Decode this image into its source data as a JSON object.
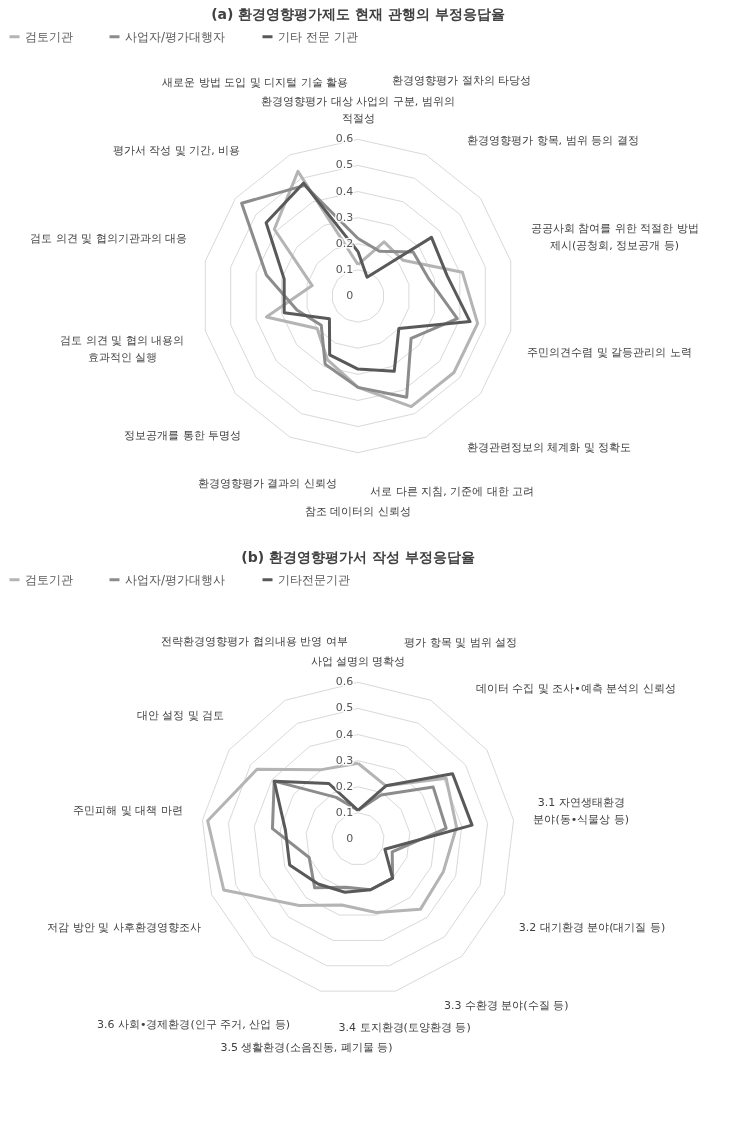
{
  "chart_data": [
    {
      "type": "radar",
      "title": "(a) 환경영향평가제도 현재 관행의 부정응답율",
      "legend": "top",
      "grid": true,
      "ylim": [
        0,
        0.6
      ],
      "yticks": [
        0,
        0.1,
        0.2,
        0.3,
        0.4,
        0.5,
        0.6
      ],
      "categories": [
        "환경영향평가 대상 사업의 구분, 범위의 적절성",
        "환경영향평가 절차의 타당성",
        "환경영향평가 항목, 범위 등의 결정",
        "공공사회 참여를 위한 적절한 방법 제시(공청회, 정보공개 등)",
        "주민의견수렴 및 갈등관리의 노력",
        "환경관련정보의 체계화 및 정확도",
        "서로 다른 지침, 기준에 대한 고려",
        "참조 데이터의 신뢰성",
        "환경영향평가 결과의 신뢰성",
        "정보공개를 통한 투명성",
        "검토 의견 및 협의 내용의 효과적인 실행",
        "검토 의견 및 협의기관과의 대응",
        "평가서 작성 및 기간, 비용",
        "새로운 방법 도입 및 디지털 기술 활용"
      ],
      "series": [
        {
          "name": "검토기관",
          "color": "#b4b4b4",
          "values": [
            0.12,
            0.23,
            0.22,
            0.41,
            0.47,
            0.47,
            0.47,
            0.35,
            0.27,
            0.2,
            0.36,
            0.18,
            0.41,
            0.53
          ]
        },
        {
          "name": "사업자/평가대행자",
          "color": "#8c8c8c",
          "values": [
            0.22,
            0.19,
            0.27,
            0.28,
            0.39,
            0.26,
            0.43,
            0.35,
            0.29,
            0.18,
            0.24,
            0.36,
            0.57,
            0.47
          ]
        },
        {
          "name": "기타 전문 기관",
          "color": "#595959",
          "values": [
            0.17,
            0.08,
            0.36,
            0.35,
            0.44,
            0.2,
            0.32,
            0.28,
            0.25,
            0.14,
            0.29,
            0.29,
            0.45,
            0.48
          ]
        }
      ]
    },
    {
      "type": "radar",
      "title": "(b) 환경영향평가서 작성 부정응답율",
      "legend": "top",
      "grid": true,
      "ylim": [
        0,
        0.6
      ],
      "yticks": [
        0,
        0.1,
        0.2,
        0.3,
        0.4,
        0.5,
        0.6
      ],
      "categories": [
        "사업 설명의 명확성",
        "평가 항목 및 범위 설정",
        "데이터 수집 및 조사•예측 분석의 신뢰성",
        "3.1 자연생태환경 분야(동•식물상 등)",
        "3.2 대기환경 분야(대기질 등)",
        "3.3 수환경 분야(수질 등)",
        "3.4 토지환경(토양환경 등)",
        "3.5 생활환경(소음진동, 폐기물 등)",
        "3.6 사회•경제환경(인구 주거, 산업 등)",
        "저감 방안 및 사후환경영향조사",
        "주민피해 및 대책 마련",
        "대안 설정 및 검토",
        "전략환경영향평가 협의내용 반영 여부"
      ],
      "series": [
        {
          "name": "검토기관",
          "color": "#b4b4b4",
          "values": [
            0.29,
            0.23,
            0.41,
            0.38,
            0.35,
            0.36,
            0.29,
            0.26,
            0.34,
            0.55,
            0.58,
            0.47,
            0.3
          ]
        },
        {
          "name": "사업자/평가대행사",
          "color": "#8c8c8c",
          "values": [
            0.11,
            0.19,
            0.35,
            0.34,
            0.14,
            0.2,
            0.2,
            0.19,
            0.25,
            0.2,
            0.33,
            0.39,
            0.18
          ]
        },
        {
          "name": "기타전문기관",
          "color": "#595959",
          "values": [
            0.11,
            0.23,
            0.44,
            0.44,
            0.11,
            0.2,
            0.2,
            0.21,
            0.23,
            0.28,
            0.28,
            0.39,
            0.24
          ]
        }
      ]
    }
  ]
}
